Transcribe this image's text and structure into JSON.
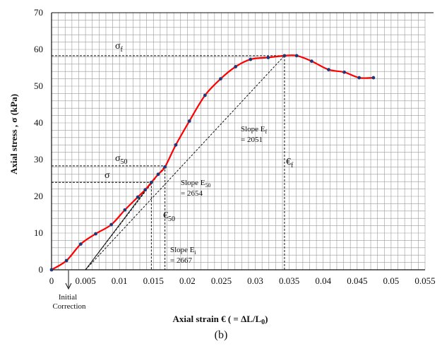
{
  "chart_data": {
    "type": "line",
    "xlabel": "Axial strain € ( = ΔL/L",
    "xlabel_sub": "0",
    "xlabel_end": ")",
    "ylabel": "Axial stress , σ (kPa)",
    "xlim": [
      0,
      0.055
    ],
    "ylim": [
      0,
      70
    ],
    "x_ticks": [
      0,
      0.005,
      0.01,
      0.015,
      0.02,
      0.025,
      0.03,
      0.035,
      0.04,
      0.045,
      0.05,
      0.055
    ],
    "x_tick_labels": [
      "0",
      "0.005",
      "0.01",
      "0.015",
      "0.02",
      "0.025",
      "0.03",
      "0.035",
      "0.04",
      "0.045",
      "0.05",
      "0.055"
    ],
    "y_ticks": [
      0,
      10,
      20,
      30,
      40,
      50,
      60,
      70
    ],
    "y_tick_labels": [
      "0",
      "10",
      "20",
      "30",
      "40",
      "50",
      "60",
      "70"
    ],
    "grid": true,
    "line_color": "#ff0000",
    "marker_color": "#1f3a7a",
    "series": [
      {
        "x": [
          0,
          0.0022,
          0.0043,
          0.0065,
          0.0088,
          0.0108,
          0.0127,
          0.0138,
          0.0147,
          0.0157,
          0.0167,
          0.0183,
          0.0203,
          0.0226,
          0.0249,
          0.0271,
          0.0293,
          0.0319,
          0.0343,
          0.0361,
          0.0383,
          0.0408,
          0.0431,
          0.0453,
          0.0474
        ],
        "y": [
          0,
          2.5,
          7,
          9.8,
          12.3,
          16.3,
          19.8,
          21.8,
          23.8,
          26,
          28,
          34,
          40.5,
          47.5,
          52,
          55.3,
          57.3,
          57.8,
          58.3,
          58.3,
          56.8,
          54.5,
          53.8,
          52.3,
          52.3
        ]
      }
    ],
    "construction_lines": {
      "initial_correction_x": 0.005,
      "sigma_f": 58.3,
      "strain_f": 0.0343,
      "sigma_50": 28.3,
      "strain_50": 0.0167,
      "sigma": 23.8,
      "strain_sigma": 0.0147
    },
    "annotations": {
      "sigma_f": "σ",
      "sigma_f_sub": "f",
      "sigma_50": "σ",
      "sigma_50_sub": "50",
      "sigma": "σ",
      "eps_f": "€",
      "eps_f_sub": "f",
      "eps_50": "€",
      "eps_50_sub": "50",
      "slope_ef_line1": "Slope E",
      "slope_ef_sub": "f",
      "slope_ef_line2": "= 2051",
      "slope_e50_line1": "Slope E",
      "slope_e50_sub": "50",
      "slope_e50_line2": "= 2654",
      "slope_ei_line1": "Slope E",
      "slope_ei_sub": "i",
      "slope_ei_line2": "= 2667",
      "initial_correction_line1": "Initial",
      "initial_correction_line2": "Correction"
    }
  },
  "caption": "(b)"
}
